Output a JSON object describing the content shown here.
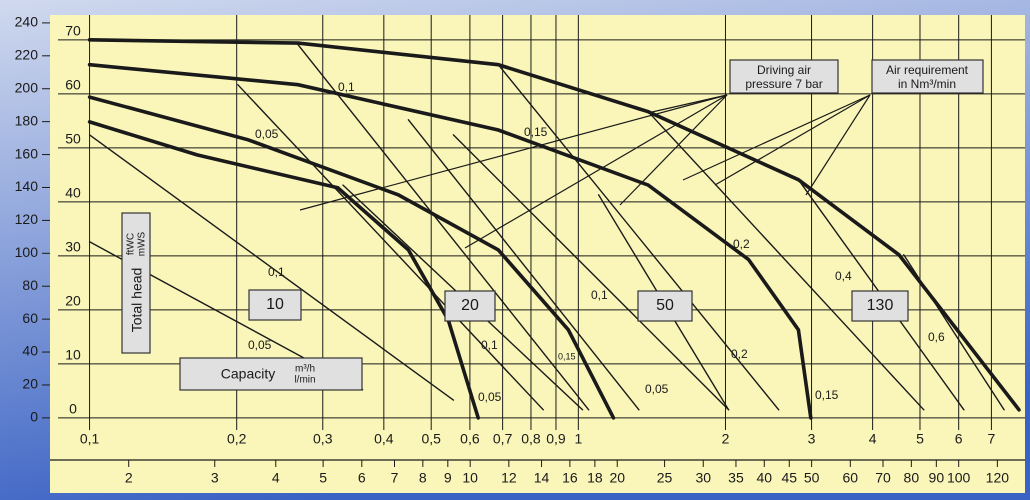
{
  "chart_data": {
    "type": "line",
    "xscale": "log",
    "x_label": "Capacity",
    "x_units": [
      "m³/h",
      "l/min"
    ],
    "y_label": "Total head",
    "y_units": [
      "ftWC",
      "mWS"
    ],
    "callouts": [
      [
        "Driving air",
        "pressure 7 bar"
      ],
      [
        "Air requirement",
        "in Nm³/min"
      ]
    ],
    "xlim": [
      0.083,
      8.2
    ],
    "x2lim": [
      1.38,
      136.7
    ],
    "ylim": [
      -7.8,
      74.6
    ],
    "y2lim": [
      -25.6,
      244.8
    ],
    "xticks": [
      {
        "value": 0.1,
        "label": "0,1"
      },
      {
        "value": 0.2,
        "label": "0,2"
      },
      {
        "value": 0.3,
        "label": "0,3"
      },
      {
        "value": 0.4,
        "label": "0,4"
      },
      {
        "value": 0.5,
        "label": "0,5"
      },
      {
        "value": 0.6,
        "label": "0,6"
      },
      {
        "value": 0.7,
        "label": "0,7"
      },
      {
        "value": 0.8,
        "label": "0,8"
      },
      {
        "value": 0.9,
        "label": "0,9"
      },
      1,
      2,
      3,
      4,
      5,
      6,
      7
    ],
    "x2ticks": [
      2,
      3,
      4,
      5,
      6,
      7,
      8,
      9,
      10,
      12,
      14,
      16,
      18,
      20,
      25,
      30,
      35,
      40,
      45,
      50,
      60,
      70,
      80,
      90,
      100,
      120
    ],
    "yticks": [
      0,
      10,
      20,
      30,
      40,
      50,
      60,
      70
    ],
    "y2ticks": [
      0,
      20,
      40,
      60,
      80,
      100,
      120,
      140,
      160,
      180,
      200,
      220,
      240
    ],
    "series": [
      {
        "name": "10",
        "color": "#1a1a1a",
        "x": [
          0.1,
          0.166,
          0.322,
          0.449,
          0.542,
          0.624
        ],
        "values": [
          54.8,
          48.7,
          42.6,
          31.1,
          18.1,
          0
        ]
      },
      {
        "name": "20",
        "color": "#1a1a1a",
        "x": [
          0.1,
          0.211,
          0.428,
          0.686,
          0.954,
          1.18
        ],
        "values": [
          59.4,
          51.5,
          41.3,
          31.1,
          16.3,
          0
        ]
      },
      {
        "name": "50",
        "color": "#1a1a1a",
        "x": [
          0.1,
          0.267,
          0.686,
          1.39,
          2.23,
          2.82,
          2.99
        ],
        "values": [
          65.4,
          61.7,
          53.3,
          43.1,
          29.3,
          16.3,
          0
        ]
      },
      {
        "name": "130",
        "color": "#1a1a1a",
        "x": [
          0.1,
          0.267,
          0.686,
          1.39,
          2.82,
          4.53,
          7.97
        ],
        "values": [
          70,
          69.4,
          65.4,
          56.7,
          44.1,
          30.2,
          1.5
        ]
      }
    ],
    "air_lines": [
      {
        "x": [
          0.201,
          0.848
        ],
        "values": [
          61.7,
          1.5
        ]
      },
      {
        "x": [
          0.1,
          0.555
        ],
        "values": [
          52.4,
          3.3
        ]
      },
      {
        "x": [
          0.1,
          0.362
        ],
        "values": [
          32.6,
          5.2
        ]
      },
      {
        "x": [
          0.267,
          1.05
        ],
        "values": [
          69.1,
          1.5
        ]
      },
      {
        "x": [
          0.449,
          1.33
        ],
        "values": [
          55.2,
          1.5
        ]
      },
      {
        "x": [
          0.33,
          1.02
        ],
        "values": [
          43.1,
          1.5
        ]
      },
      {
        "x": [
          0.686,
          2.57
        ],
        "values": [
          65.4,
          1.5
        ]
      },
      {
        "x": [
          0.555,
          2.03
        ],
        "values": [
          52.4,
          1.5
        ]
      },
      {
        "x": [
          1.1,
          2.03
        ],
        "values": [
          41.3,
          1.5
        ]
      },
      {
        "x": [
          1.39,
          5.09
        ],
        "values": [
          56.7,
          1.5
        ]
      },
      {
        "x": [
          2.82,
          6.15
        ],
        "values": [
          44.1,
          1.5
        ]
      },
      {
        "x": [
          4.63,
          7.43
        ],
        "values": [
          30.2,
          1.5
        ]
      }
    ],
    "line_labels": [
      "0,1",
      "0,05",
      "0,15",
      "0,2",
      "0,4",
      "0,6",
      "0,1",
      "0,05",
      "0,1",
      "0,1",
      "0,15",
      "0,2",
      "0,05",
      "0,05",
      "0,15"
    ]
  }
}
